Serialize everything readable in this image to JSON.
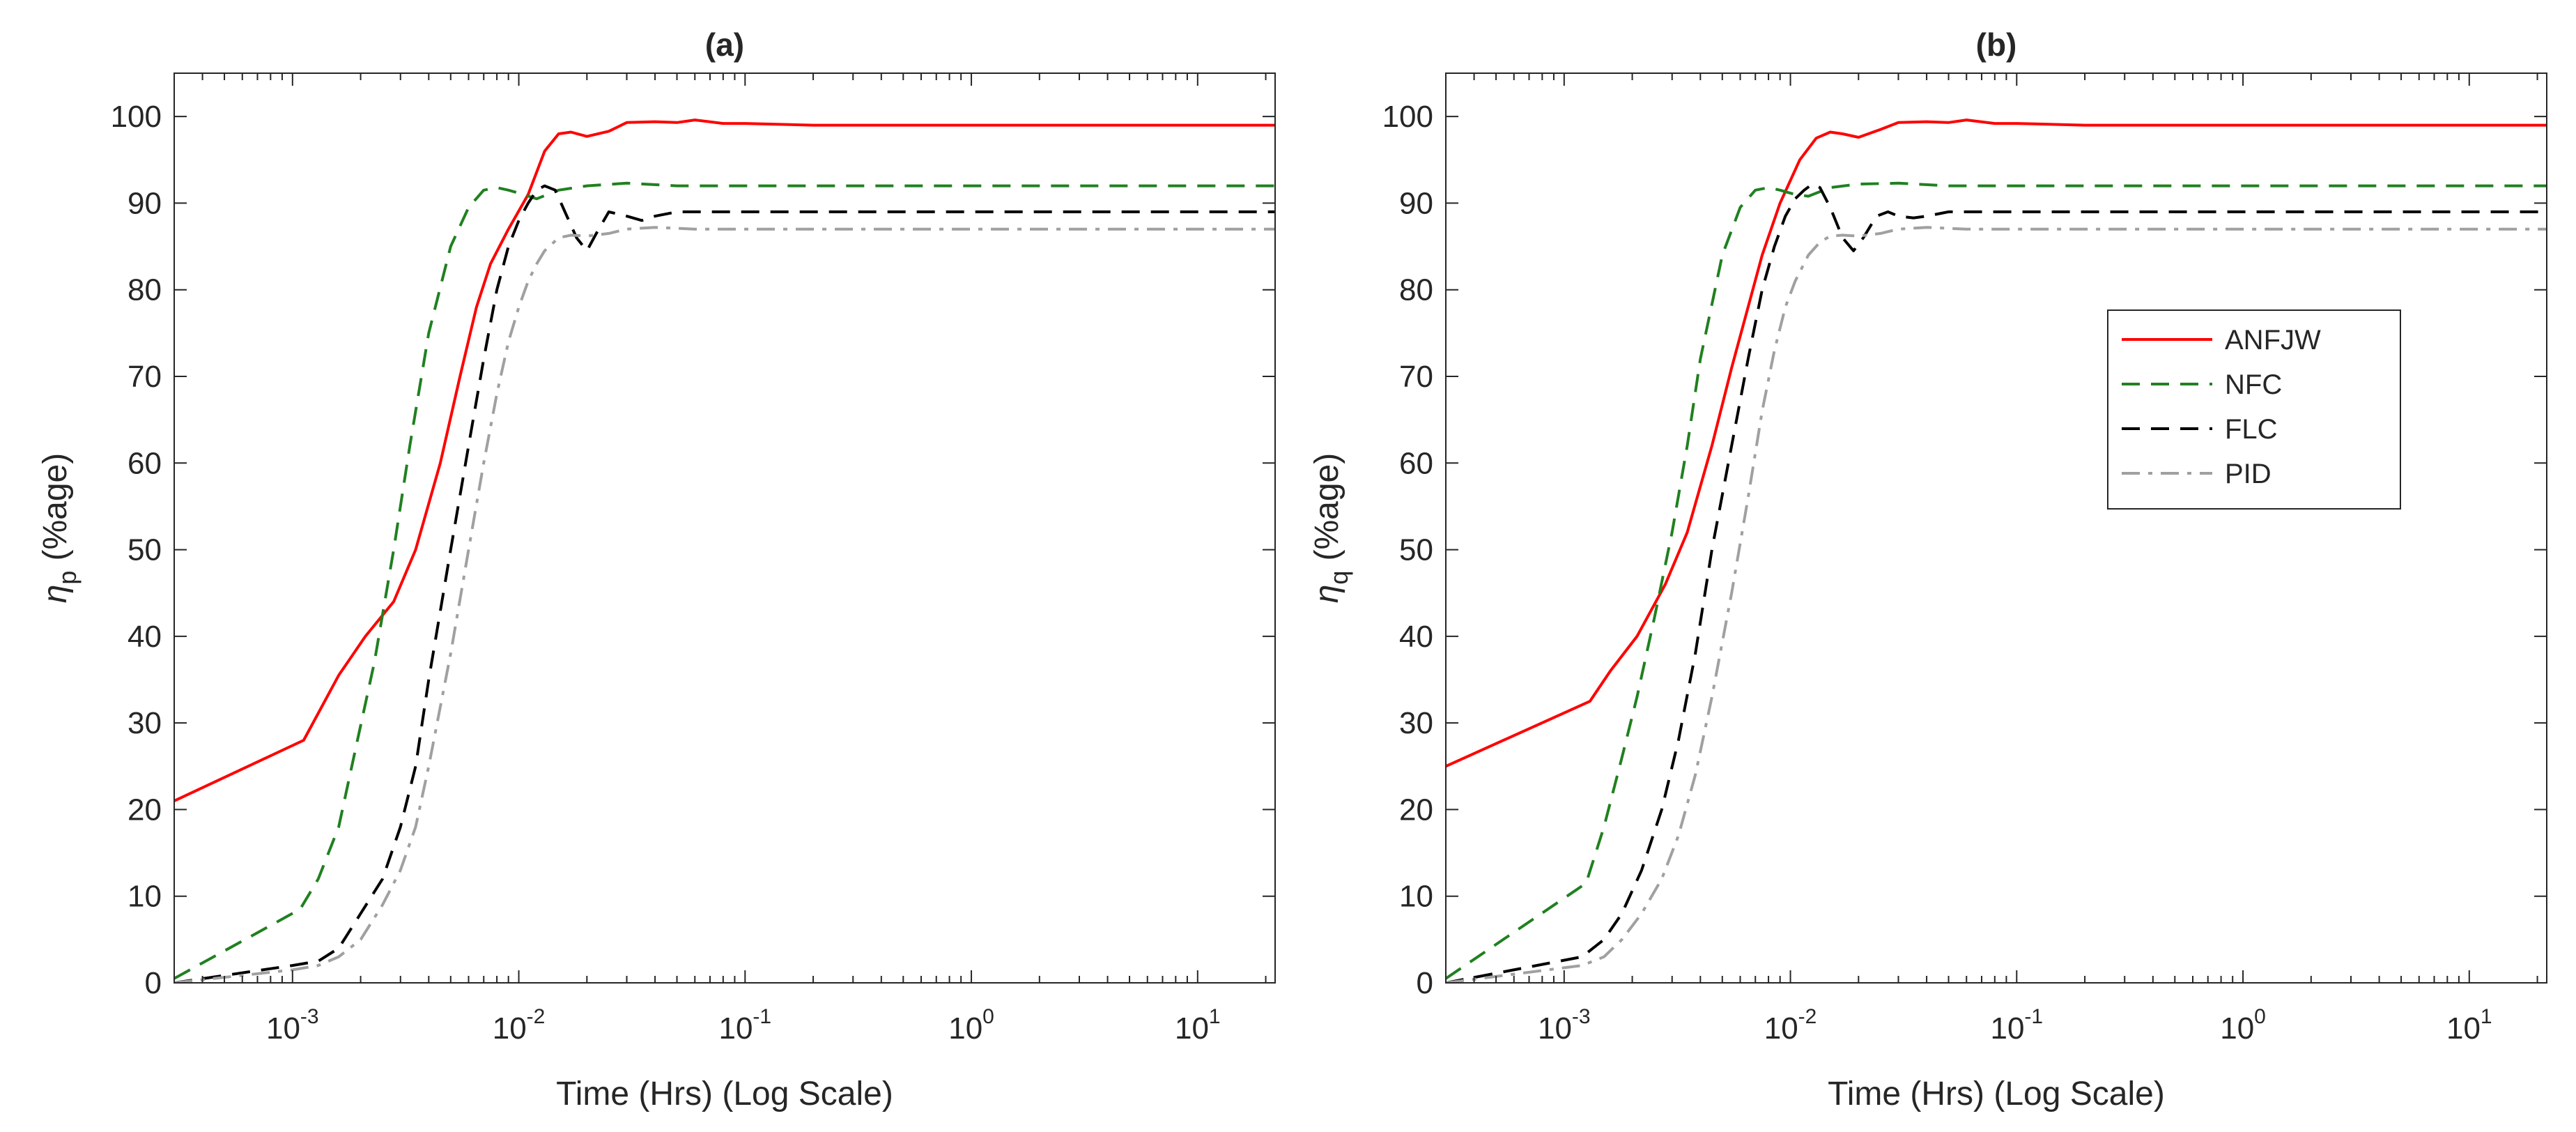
{
  "chart_data": [
    {
      "type": "line",
      "title": "(a)",
      "xlabel": "Time (Hrs) (Log Scale)",
      "ylabel_symbol": "η",
      "ylabel_subscript": "p",
      "ylabel_unit": "(%age)",
      "xscale": "log",
      "xlim": [
        0.0003,
        22
      ],
      "ylim": [
        0,
        105
      ],
      "yticks": [
        0,
        10,
        20,
        30,
        40,
        50,
        60,
        70,
        80,
        90,
        100
      ],
      "xticks": [
        {
          "value": 0.001,
          "base": "10",
          "exp": "-3"
        },
        {
          "value": 0.01,
          "base": "10",
          "exp": "-2"
        },
        {
          "value": 0.1,
          "base": "10",
          "exp": "-1"
        },
        {
          "value": 1,
          "base": "10",
          "exp": "0"
        },
        {
          "value": 10,
          "base": "10",
          "exp": "1"
        }
      ],
      "grid": false,
      "legend": false,
      "series": [
        {
          "name": "ANFJW",
          "color": "#ff0000",
          "style": "solid",
          "x": [
            0.0003,
            0.00112,
            0.0016,
            0.0021,
            0.0028,
            0.0035,
            0.0045,
            0.0055,
            0.0065,
            0.0075,
            0.009,
            0.011,
            0.013,
            0.015,
            0.017,
            0.02,
            0.025,
            0.03,
            0.04,
            0.05,
            0.06,
            0.08,
            0.1,
            0.2,
            1,
            10,
            22
          ],
          "y": [
            21,
            28,
            35.5,
            40,
            44,
            50,
            60,
            70,
            78,
            83,
            87,
            91,
            96,
            98,
            98.2,
            97.7,
            98.3,
            99.3,
            99.4,
            99.3,
            99.6,
            99.2,
            99.2,
            99,
            99,
            99,
            99
          ]
        },
        {
          "name": "NFC",
          "color": "#208020",
          "style": "dashed",
          "x": [
            0.0003,
            0.00108,
            0.0013,
            0.0016,
            0.0019,
            0.0023,
            0.0028,
            0.0033,
            0.004,
            0.005,
            0.006,
            0.007,
            0.008,
            0.009,
            0.0105,
            0.012,
            0.015,
            0.02,
            0.03,
            0.05,
            0.1,
            1,
            10,
            22
          ],
          "y": [
            0.5,
            8.5,
            12,
            18,
            27,
            37,
            50,
            62,
            75,
            85,
            89.5,
            91.5,
            91.8,
            91.5,
            91,
            90.5,
            91.5,
            92,
            92.3,
            92,
            92,
            92,
            92,
            92
          ]
        },
        {
          "name": "FLC",
          "color": "#000000",
          "style": "dashed",
          "x": [
            0.0003,
            0.001,
            0.0013,
            0.0016,
            0.002,
            0.0025,
            0.003,
            0.0035,
            0.004,
            0.005,
            0.006,
            0.007,
            0.008,
            0.009,
            0.01,
            0.011,
            0.012,
            0.013,
            0.0145,
            0.016,
            0.018,
            0.02,
            0.022,
            0.025,
            0.03,
            0.035,
            0.04,
            0.05,
            0.07,
            0.1,
            1,
            10,
            22
          ],
          "y": [
            0,
            2,
            2.5,
            4,
            8,
            12,
            18,
            25,
            35,
            50,
            62,
            72,
            80,
            85,
            88,
            90,
            91.5,
            92,
            91.5,
            89,
            86,
            84.5,
            86.5,
            89,
            88.5,
            88,
            88.5,
            89,
            89,
            89,
            89,
            89,
            89
          ]
        },
        {
          "name": "PID",
          "color": "#a0a0a0",
          "style": "dashdot",
          "x": [
            0.0003,
            0.001,
            0.0013,
            0.0016,
            0.002,
            0.0025,
            0.003,
            0.0035,
            0.004,
            0.005,
            0.006,
            0.007,
            0.008,
            0.009,
            0.01,
            0.011,
            0.012,
            0.013,
            0.015,
            0.017,
            0.02,
            0.025,
            0.03,
            0.04,
            0.06,
            0.1,
            1,
            10,
            22
          ],
          "y": [
            0,
            1.5,
            2,
            3,
            5,
            9,
            13,
            18,
            25,
            38,
            50,
            60,
            68,
            74,
            78,
            81,
            83,
            84.5,
            86,
            86.3,
            86.2,
            86.5,
            87,
            87.2,
            87,
            87,
            87,
            87,
            87
          ]
        }
      ]
    },
    {
      "type": "line",
      "title": "(b)",
      "xlabel": "Time (Hrs) (Log Scale)",
      "ylabel_symbol": "η",
      "ylabel_subscript": "q",
      "ylabel_unit": "(%age)",
      "xscale": "log",
      "xlim": [
        0.0003,
        22
      ],
      "ylim": [
        0,
        105
      ],
      "yticks": [
        0,
        10,
        20,
        30,
        40,
        50,
        60,
        70,
        80,
        90,
        100
      ],
      "xticks": [
        {
          "value": 0.001,
          "base": "10",
          "exp": "-3"
        },
        {
          "value": 0.01,
          "base": "10",
          "exp": "-2"
        },
        {
          "value": 0.1,
          "base": "10",
          "exp": "-1"
        },
        {
          "value": 1,
          "base": "10",
          "exp": "0"
        },
        {
          "value": 10,
          "base": "10",
          "exp": "1"
        }
      ],
      "grid": false,
      "legend": true,
      "legend_position": "right",
      "series": [
        {
          "name": "ANFJW",
          "color": "#ff0000",
          "style": "solid",
          "x": [
            0.0003,
            0.0013,
            0.0016,
            0.0021,
            0.0028,
            0.0035,
            0.0045,
            0.0055,
            0.0065,
            0.0075,
            0.009,
            0.011,
            0.013,
            0.015,
            0.017,
            0.02,
            0.025,
            0.03,
            0.04,
            0.05,
            0.06,
            0.08,
            0.1,
            0.2,
            1,
            10,
            22
          ],
          "y": [
            25,
            32.5,
            36,
            40,
            46,
            52,
            62,
            71,
            78,
            84,
            90,
            95,
            97.5,
            98.2,
            98,
            97.6,
            98.5,
            99.3,
            99.4,
            99.3,
            99.6,
            99.2,
            99.2,
            99,
            99,
            99,
            99
          ]
        },
        {
          "name": "NFC",
          "color": "#208020",
          "style": "dashed",
          "x": [
            0.0003,
            0.00125,
            0.0015,
            0.0018,
            0.0021,
            0.0025,
            0.003,
            0.0035,
            0.004,
            0.005,
            0.006,
            0.007,
            0.008,
            0.009,
            0.0105,
            0.012,
            0.015,
            0.02,
            0.03,
            0.05,
            0.1,
            1,
            10,
            22
          ],
          "y": [
            0.5,
            11.5,
            18,
            26,
            33,
            42,
            52,
            62,
            72,
            84,
            89.5,
            91.5,
            91.8,
            91.5,
            91,
            90.8,
            91.8,
            92.2,
            92.3,
            92,
            92,
            92,
            92,
            92
          ]
        },
        {
          "name": "FLC",
          "color": "#000000",
          "style": "dashed",
          "x": [
            0.0003,
            0.0012,
            0.0015,
            0.0018,
            0.0022,
            0.0027,
            0.0032,
            0.0038,
            0.0045,
            0.0055,
            0.0065,
            0.0075,
            0.0085,
            0.0095,
            0.0105,
            0.0115,
            0.0125,
            0.0135,
            0.015,
            0.017,
            0.019,
            0.021,
            0.024,
            0.027,
            0.03,
            0.035,
            0.04,
            0.05,
            0.07,
            0.1,
            1,
            10,
            22
          ],
          "y": [
            0,
            3,
            5,
            8,
            13,
            20,
            28,
            38,
            50,
            62,
            72,
            80,
            85,
            88.5,
            90.5,
            91.5,
            92.2,
            91.8,
            89.5,
            86,
            84.5,
            86,
            88.5,
            89,
            88.5,
            88.3,
            88.5,
            89,
            89,
            89,
            89,
            89,
            89
          ]
        },
        {
          "name": "PID",
          "color": "#a0a0a0",
          "style": "dashdot",
          "x": [
            0.0003,
            0.0012,
            0.0015,
            0.0018,
            0.0022,
            0.0027,
            0.0032,
            0.0038,
            0.0045,
            0.0055,
            0.0065,
            0.0075,
            0.0085,
            0.0095,
            0.0105,
            0.012,
            0.0135,
            0.015,
            0.017,
            0.02,
            0.025,
            0.03,
            0.04,
            0.06,
            0.1,
            1,
            10,
            22
          ],
          "y": [
            0,
            2,
            3,
            5,
            8,
            12,
            17,
            24,
            33,
            45,
            56,
            66,
            73,
            78,
            81,
            84,
            85.5,
            86.2,
            86.3,
            86.2,
            86.5,
            87,
            87.2,
            87,
            87,
            87,
            87,
            87
          ]
        }
      ]
    }
  ]
}
